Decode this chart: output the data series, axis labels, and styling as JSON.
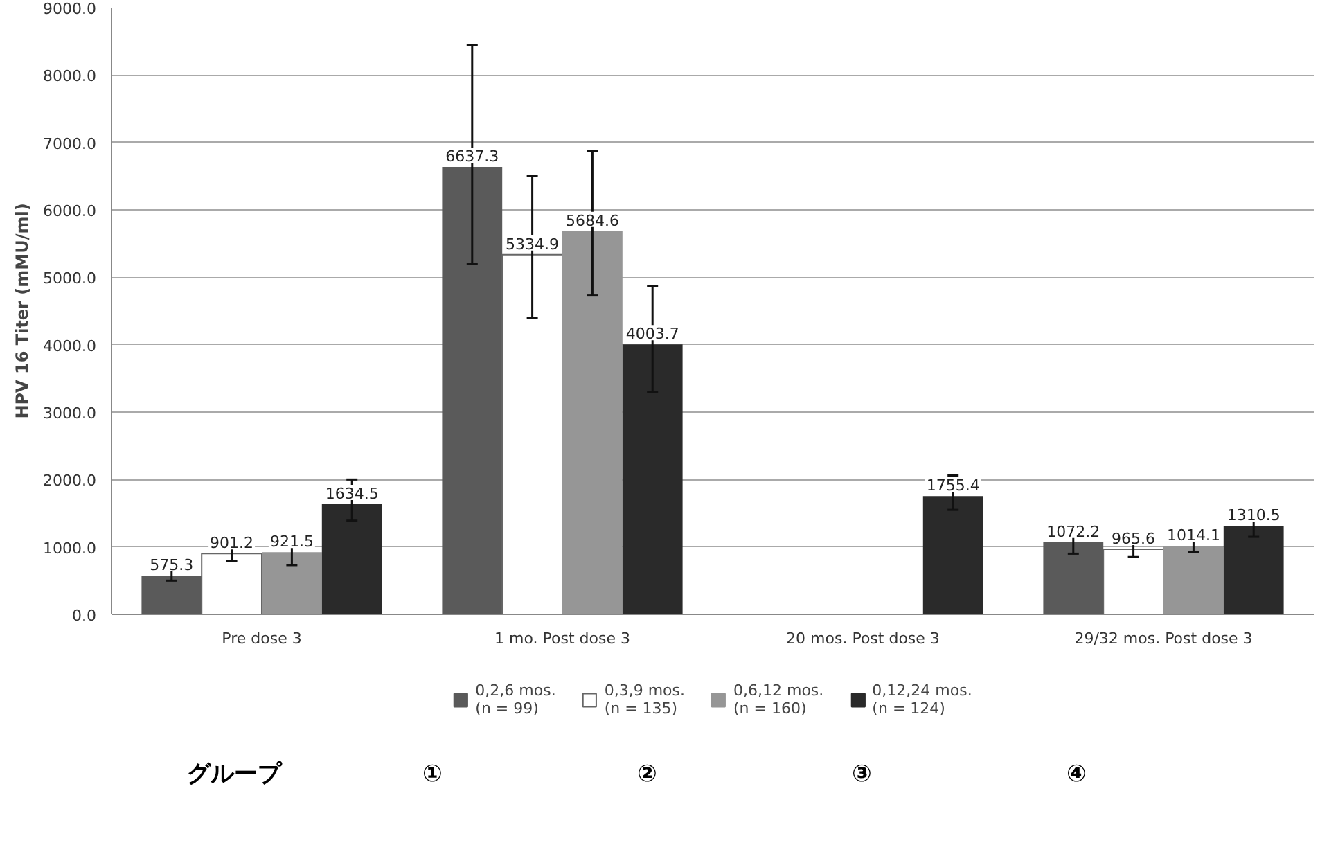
{
  "chart_data": {
    "type": "bar",
    "ylabel": "HPV 16 Titer (mMU/ml)",
    "categories": [
      "Pre dose 3",
      "1 mo. Post dose 3",
      "20 mos. Post dose 3",
      "29/32 mos. Post dose 3"
    ],
    "series": [
      {
        "name": "0,2,6 mos.\n(n = 99)",
        "color": "#5a5a5a",
        "values": [
          575.3,
          6637.3,
          null,
          1072.2
        ],
        "errors": [
          [
            500,
            730
          ],
          [
            5200,
            8450
          ],
          null,
          [
            900,
            1280
          ]
        ]
      },
      {
        "name": "0,3,9 mos.\n(n = 135)",
        "color": "#ffffff",
        "values": [
          901.2,
          5334.9,
          null,
          965.6
        ],
        "errors": [
          [
            790,
            1040
          ],
          [
            4400,
            6500
          ],
          null,
          [
            850,
            1150
          ]
        ]
      },
      {
        "name": "0,6,12 mos.\n(n = 160)",
        "color": "#969696",
        "values": [
          921.5,
          5684.6,
          null,
          1014.1
        ],
        "errors": [
          [
            730,
            1170
          ],
          [
            4730,
            6870
          ],
          null,
          [
            930,
            1150
          ]
        ]
      },
      {
        "name": "0,12,24 mos.\n(n = 124)",
        "color": "#2a2a2a",
        "values": [
          1634.5,
          4003.7,
          1755.4,
          1310.5
        ],
        "errors": [
          [
            1390,
            2000
          ],
          [
            3300,
            4870
          ],
          [
            1550,
            2060
          ],
          [
            1150,
            1550
          ]
        ]
      }
    ],
    "ylim": [
      0,
      9000
    ],
    "yticks": [
      {
        "value": 0,
        "label": "0.0"
      },
      {
        "value": 1000,
        "label": "1000.0"
      },
      {
        "value": 2000,
        "label": "2000.0"
      },
      {
        "value": 3000,
        "label": "3000.0"
      },
      {
        "value": 4000,
        "label": "4000.0"
      },
      {
        "value": 5000,
        "label": "5000.0"
      },
      {
        "value": 6000,
        "label": "6000.0"
      },
      {
        "value": 7000,
        "label": "7000.0"
      },
      {
        "value": 8000,
        "label": "8000.0"
      },
      {
        "value": 9000,
        "label": "9000.0"
      }
    ],
    "grid": "y",
    "legend": "bottom",
    "data_labels": true,
    "annotations": [
      "グループ",
      "①",
      "②",
      "③",
      "④"
    ]
  }
}
